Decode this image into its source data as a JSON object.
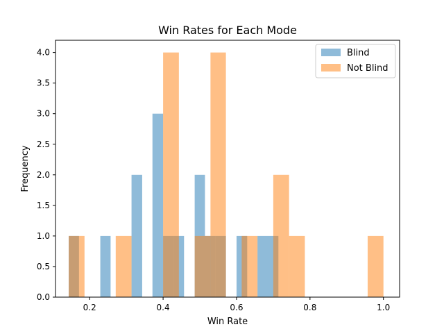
{
  "chart_data": {
    "type": "histogram",
    "title": "Win Rates for Each Mode",
    "xlabel": "Win Rate",
    "ylabel": "Frequency",
    "xlim": [
      0.107,
      1.044
    ],
    "ylim": [
      0,
      4.2
    ],
    "x_ticks": [
      0.2,
      0.4,
      0.6,
      0.8,
      1.0
    ],
    "x_tick_labels": [
      "0.2",
      "0.4",
      "0.6",
      "0.8",
      "1.0"
    ],
    "y_ticks": [
      0.0,
      0.5,
      1.0,
      1.5,
      2.0,
      2.5,
      3.0,
      3.5,
      4.0
    ],
    "y_tick_labels": [
      "0.0",
      "0.5",
      "1.0",
      "1.5",
      "2.0",
      "2.5",
      "3.0",
      "3.5",
      "4.0"
    ],
    "grid": false,
    "legend_position": "top-right",
    "bar_alpha": 0.5,
    "series": [
      {
        "name": "Blind",
        "color": "#1f77b4",
        "bins": [
          {
            "x0": 0.143,
            "x1": 0.171,
            "count": 1
          },
          {
            "x0": 0.229,
            "x1": 0.257,
            "count": 1
          },
          {
            "x0": 0.314,
            "x1": 0.343,
            "count": 2
          },
          {
            "x0": 0.371,
            "x1": 0.4,
            "count": 3
          },
          {
            "x0": 0.4,
            "x1": 0.429,
            "count": 1
          },
          {
            "x0": 0.429,
            "x1": 0.457,
            "count": 1
          },
          {
            "x0": 0.486,
            "x1": 0.514,
            "count": 2
          },
          {
            "x0": 0.514,
            "x1": 0.543,
            "count": 1
          },
          {
            "x0": 0.543,
            "x1": 0.571,
            "count": 1
          },
          {
            "x0": 0.6,
            "x1": 0.629,
            "count": 1
          },
          {
            "x0": 0.657,
            "x1": 0.686,
            "count": 1
          },
          {
            "x0": 0.686,
            "x1": 0.714,
            "count": 1
          }
        ]
      },
      {
        "name": "Not Blind",
        "color": "#ff7f0e",
        "bins": [
          {
            "x0": 0.143,
            "x1": 0.186,
            "count": 1
          },
          {
            "x0": 0.271,
            "x1": 0.314,
            "count": 1
          },
          {
            "x0": 0.4,
            "x1": 0.443,
            "count": 4
          },
          {
            "x0": 0.486,
            "x1": 0.529,
            "count": 1
          },
          {
            "x0": 0.529,
            "x1": 0.571,
            "count": 4
          },
          {
            "x0": 0.614,
            "x1": 0.657,
            "count": 1
          },
          {
            "x0": 0.7,
            "x1": 0.743,
            "count": 2
          },
          {
            "x0": 0.743,
            "x1": 0.786,
            "count": 1
          },
          {
            "x0": 0.957,
            "x1": 1.0,
            "count": 1
          }
        ]
      }
    ]
  }
}
